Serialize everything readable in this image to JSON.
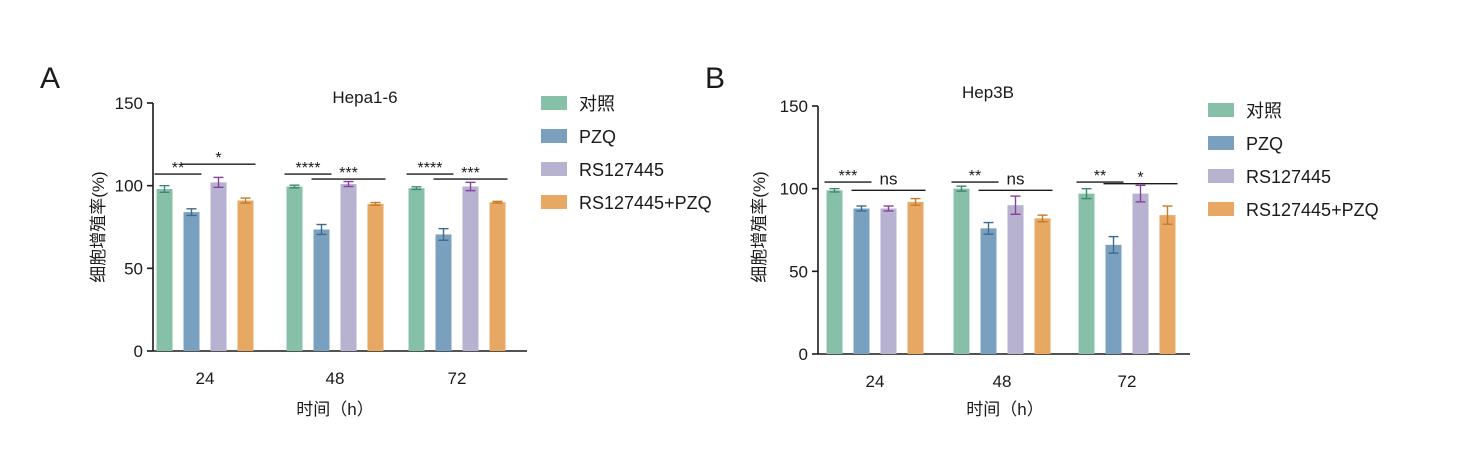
{
  "panels": [
    {
      "letter": "A",
      "chart_data": {
        "type": "bar",
        "title": "Hepa1-6",
        "xlabel": "时间（h）",
        "ylabel": "细胞增殖率(%)",
        "ylim": [
          0,
          150
        ],
        "yticks": [
          0,
          50,
          100,
          150
        ],
        "categories": [
          "24",
          "48",
          "72"
        ],
        "legend_position": "right",
        "series": [
          {
            "name": "对照",
            "color": "#86c0a8",
            "values": [
              98,
              99.5,
              98.5
            ],
            "errors": [
              2.0,
              0.8,
              0.8
            ]
          },
          {
            "name": "PZQ",
            "color": "#7aa0c0",
            "values": [
              84,
              73.5,
              70.5
            ],
            "errors": [
              2.0,
              3.0,
              3.5
            ]
          },
          {
            "name": "RS127445",
            "color": "#b6b2d0",
            "values": [
              102,
              101,
              99.5
            ],
            "errors": [
              3.0,
              1.5,
              2.5
            ]
          },
          {
            "name": "RS127445+PZQ",
            "color": "#e6a863",
            "values": [
              91,
              89,
              90
            ],
            "errors": [
              1.5,
              0.8,
              0.5
            ]
          }
        ],
        "error_color": "#8a3fa0",
        "annotations": [
          {
            "category": 0,
            "from_series": 0,
            "to_series": 1,
            "y": 107,
            "text": "**"
          },
          {
            "category": 0,
            "from_series": 1,
            "to_series": 3,
            "y": 113,
            "text": "*"
          },
          {
            "category": 1,
            "from_series": 0,
            "to_series": 1,
            "y": 107,
            "text": "****"
          },
          {
            "category": 1,
            "from_series": 1,
            "to_series": 3,
            "y": 104,
            "text": "***"
          },
          {
            "category": 2,
            "from_series": 0,
            "to_series": 1,
            "y": 107,
            "text": "****"
          },
          {
            "category": 2,
            "from_series": 1,
            "to_series": 3,
            "y": 104,
            "text": "***"
          }
        ]
      }
    },
    {
      "letter": "B",
      "chart_data": {
        "type": "bar",
        "title": "Hep3B",
        "xlabel": "时间（h）",
        "ylabel": "细胞增殖率(%)",
        "ylim": [
          0,
          150
        ],
        "yticks": [
          0,
          50,
          100,
          150
        ],
        "categories": [
          "24",
          "48",
          "72"
        ],
        "legend_position": "right",
        "series": [
          {
            "name": "对照",
            "color": "#86c0a8",
            "values": [
              99,
              100,
              97
            ],
            "errors": [
              1.0,
              1.5,
              3.0
            ]
          },
          {
            "name": "PZQ",
            "color": "#7aa0c0",
            "values": [
              88,
              76,
              66
            ],
            "errors": [
              1.5,
              3.5,
              5.0
            ]
          },
          {
            "name": "RS127445",
            "color": "#b6b2d0",
            "values": [
              88,
              90,
              97
            ],
            "errors": [
              1.5,
              5.5,
              5.0
            ]
          },
          {
            "name": "RS127445+PZQ",
            "color": "#e6a863",
            "values": [
              92,
              82,
              84
            ],
            "errors": [
              2.0,
              2.0,
              5.5
            ]
          }
        ],
        "error_color": "#8a3fa0",
        "annotations": [
          {
            "category": 0,
            "from_series": 0,
            "to_series": 1,
            "y": 104,
            "text": "***"
          },
          {
            "category": 0,
            "from_series": 1,
            "to_series": 3,
            "y": 99,
            "text": "ns"
          },
          {
            "category": 1,
            "from_series": 0,
            "to_series": 1,
            "y": 104,
            "text": "**"
          },
          {
            "category": 1,
            "from_series": 1,
            "to_series": 3,
            "y": 99,
            "text": "ns"
          },
          {
            "category": 2,
            "from_series": 0,
            "to_series": 1,
            "y": 104,
            "text": "**"
          },
          {
            "category": 2,
            "from_series": 1,
            "to_series": 3,
            "y": 103,
            "text": "*"
          }
        ]
      }
    }
  ]
}
